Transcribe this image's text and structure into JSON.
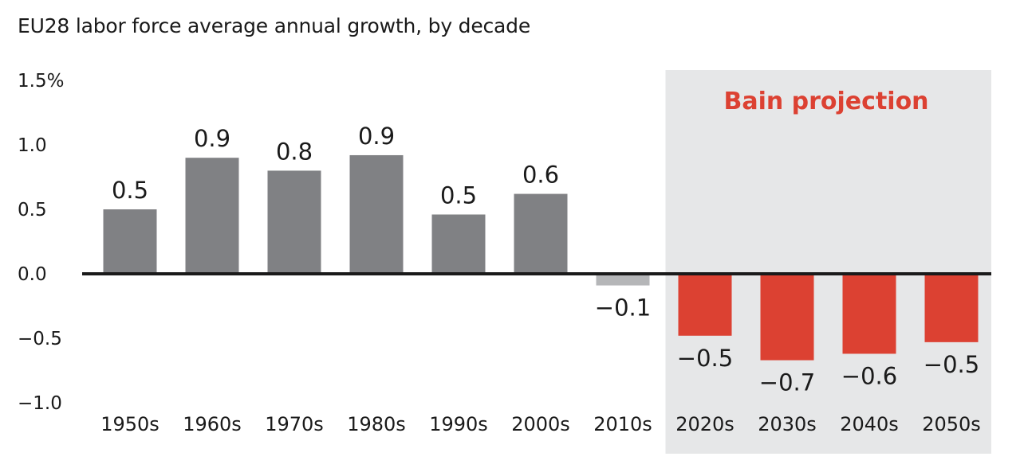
{
  "chart_data": {
    "type": "bar",
    "title": "EU28 labor force average annual growth, by decade",
    "xlabel": "",
    "ylabel": "",
    "ylim": [
      -1.0,
      1.5
    ],
    "yticks": [
      {
        "value": 1.5,
        "label": "1.5%"
      },
      {
        "value": 1.0,
        "label": "1.0"
      },
      {
        "value": 0.5,
        "label": "0.5"
      },
      {
        "value": 0.0,
        "label": "0.0"
      },
      {
        "value": -0.5,
        "label": "−0.5"
      },
      {
        "value": -1.0,
        "label": "−1.0"
      }
    ],
    "categories": [
      "1950s",
      "1960s",
      "1970s",
      "1980s",
      "1990s",
      "2000s",
      "2010s",
      "2020s",
      "2030s",
      "2040s",
      "2050s"
    ],
    "values": [
      0.5,
      0.9,
      0.8,
      0.92,
      0.46,
      0.62,
      -0.09,
      -0.48,
      -0.67,
      -0.62,
      -0.53
    ],
    "data_labels": [
      "0.5",
      "0.9",
      "0.8",
      "0.9",
      "0.5",
      "0.6",
      "−0.1",
      "−0.5",
      "−0.7",
      "−0.6",
      "−0.5"
    ],
    "projection": {
      "label": "Bain projection",
      "start_category": "2020s"
    },
    "grid": false,
    "colors": {
      "historical": "#808184",
      "recent": "#b5b6b8",
      "projected": "#dc4132",
      "projection_bg": "#e6e7e8",
      "projection_text": "#dc4132",
      "axis": "#1a1a1a"
    }
  }
}
